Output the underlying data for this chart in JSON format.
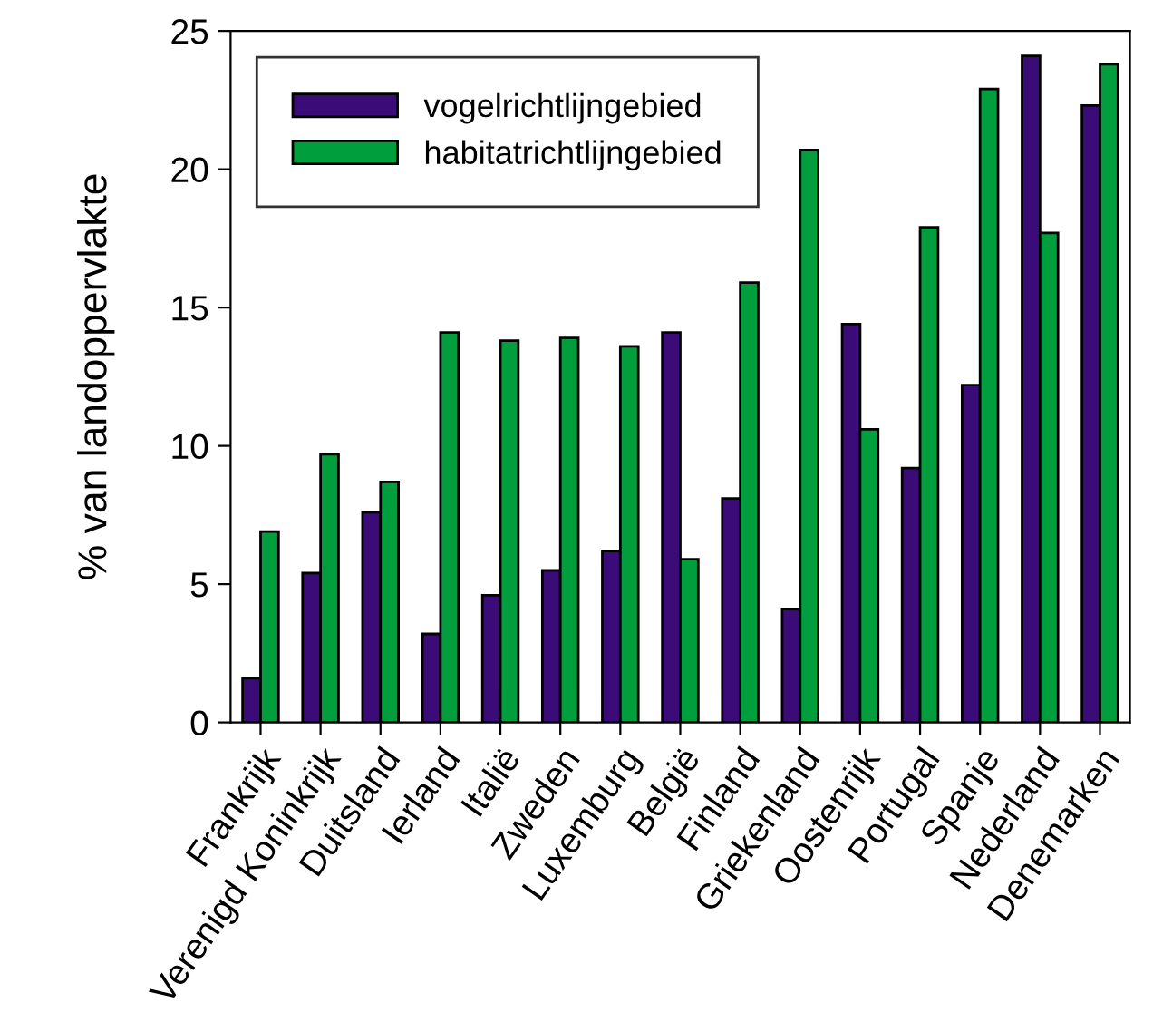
{
  "chart_data": {
    "type": "bar",
    "ylabel": "% van landoppervlakte",
    "categories": [
      "Frankrijk",
      "Verenigd Koninkrijk",
      "Duitsland",
      "Ierland",
      "Italië",
      "Zweden",
      "Luxemburg",
      "België",
      "Finland",
      "Griekenland",
      "Oostenrijk",
      "Portugal",
      "Spanje",
      "Nederland",
      "Denemarken"
    ],
    "series": [
      {
        "name": "vogelrichtlijngebied",
        "color": "#3b0b78",
        "values": [
          1.6,
          5.4,
          7.6,
          3.2,
          4.6,
          5.5,
          6.2,
          14.1,
          8.1,
          4.1,
          14.4,
          9.2,
          12.2,
          24.1,
          22.3
        ]
      },
      {
        "name": "habitatrichtlijngebied",
        "color": "#009e3d",
        "values": [
          6.9,
          9.7,
          8.7,
          14.1,
          13.8,
          13.9,
          13.6,
          5.9,
          15.9,
          20.7,
          10.6,
          17.9,
          22.9,
          17.7,
          23.8
        ]
      }
    ],
    "ylim": [
      0,
      25
    ],
    "yticks": [
      0,
      5,
      10,
      15,
      20,
      25
    ],
    "grid": false,
    "legend": "top left"
  }
}
